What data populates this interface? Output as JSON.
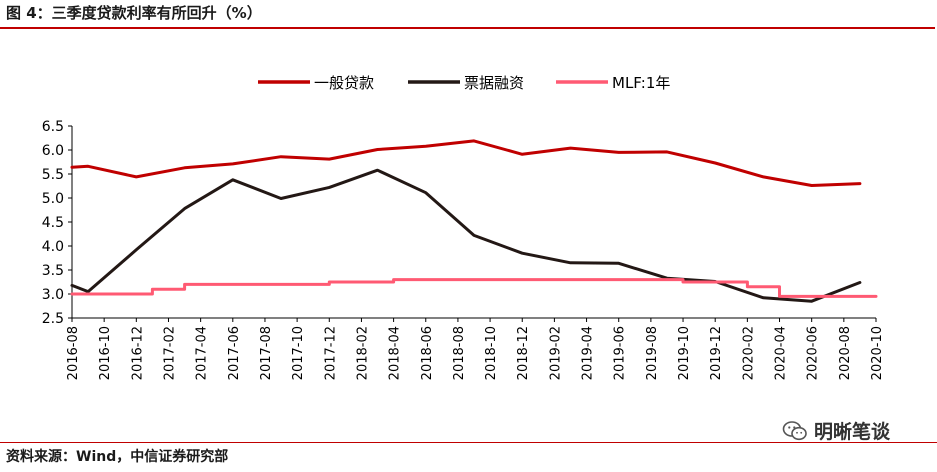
{
  "page": {
    "title": "图 4：三季度贷款利率有所回升（%）",
    "source": "资料来源：Wind，中信证券研究部",
    "watermark": "明晰笔谈",
    "watermark_icon": "wechat-chat-icon"
  },
  "chart_data": {
    "type": "line",
    "title": "",
    "xlabel": "",
    "ylabel": "",
    "ylim": [
      2.5,
      6.5
    ],
    "yticks": [
      "6.5",
      "6.0",
      "5.5",
      "5.0",
      "4.5",
      "4.0",
      "3.5",
      "3.0",
      "2.5"
    ],
    "grid": false,
    "legend_position": "top-center",
    "x_range": [
      "2016-08",
      "2020-10"
    ],
    "xticks": [
      "2016-08",
      "2016-10",
      "2016-12",
      "2017-02",
      "2017-04",
      "2017-06",
      "2017-08",
      "2017-10",
      "2017-12",
      "2018-02",
      "2018-04",
      "2018-06",
      "2018-08",
      "2018-10",
      "2018-12",
      "2019-02",
      "2019-04",
      "2019-06",
      "2019-08",
      "2019-10",
      "2019-12",
      "2020-02",
      "2020-04",
      "2020-06",
      "2020-08",
      "2020-10"
    ],
    "series": [
      {
        "name": "一般贷款",
        "color": "#c00000",
        "x": [
          "2016-08",
          "2016-09",
          "2016-12",
          "2017-03",
          "2017-06",
          "2017-09",
          "2017-12",
          "2018-03",
          "2018-06",
          "2018-09",
          "2018-12",
          "2019-03",
          "2019-06",
          "2019-09",
          "2019-12",
          "2020-03",
          "2020-06",
          "2020-09"
        ],
        "values": [
          5.64,
          5.66,
          5.44,
          5.63,
          5.71,
          5.86,
          5.81,
          6.01,
          6.08,
          6.19,
          5.91,
          6.04,
          5.95,
          5.96,
          5.73,
          5.44,
          5.26,
          5.3
        ]
      },
      {
        "name": "票据融资",
        "color": "#231815",
        "x": [
          "2016-08",
          "2016-09",
          "2016-12",
          "2017-03",
          "2017-06",
          "2017-09",
          "2017-12",
          "2018-03",
          "2018-06",
          "2018-09",
          "2018-12",
          "2019-03",
          "2019-06",
          "2019-09",
          "2019-12",
          "2020-03",
          "2020-06",
          "2020-09"
        ],
        "values": [
          3.18,
          3.05,
          3.92,
          4.78,
          5.38,
          4.99,
          5.22,
          5.58,
          5.11,
          4.22,
          3.85,
          3.65,
          3.64,
          3.33,
          3.26,
          2.92,
          2.85,
          3.24
        ]
      },
      {
        "name": "MLF:1年",
        "color": "#ff5a73",
        "x": [
          "2016-08",
          "2017-01",
          "2017-01",
          "2017-03",
          "2017-03",
          "2017-12",
          "2017-12",
          "2018-04",
          "2018-04",
          "2019-10",
          "2019-10",
          "2020-02",
          "2020-02",
          "2020-04",
          "2020-04",
          "2020-10"
        ],
        "values": [
          3.0,
          3.0,
          3.1,
          3.1,
          3.2,
          3.2,
          3.25,
          3.25,
          3.3,
          3.3,
          3.25,
          3.25,
          3.15,
          3.15,
          2.95,
          2.95
        ]
      }
    ]
  }
}
